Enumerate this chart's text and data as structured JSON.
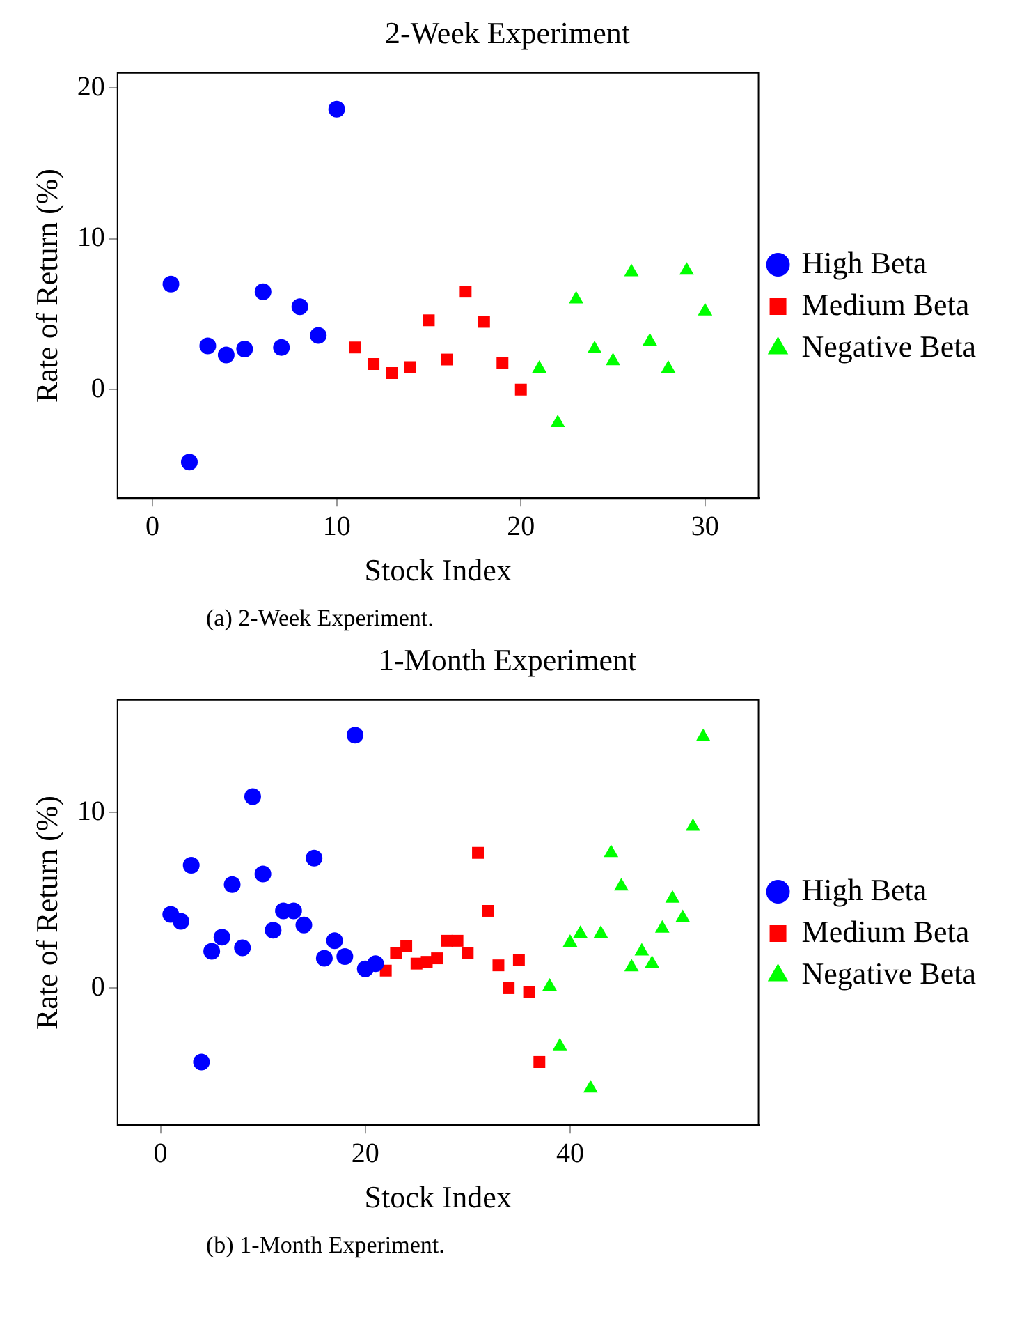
{
  "chart_data": [
    {
      "type": "scatter",
      "title": "2-Week Experiment",
      "xlabel": "Stock Index",
      "ylabel": "Rate of Return (%)",
      "xlim": [
        -1.9,
        32.9
      ],
      "ylim": [
        -7.2,
        21
      ],
      "xticks": [
        0,
        10,
        20,
        30
      ],
      "yticks": [
        0,
        10,
        20
      ],
      "grid": false,
      "legend": "right",
      "annotations": [
        "(a) 2-Week Experiment."
      ],
      "series": [
        {
          "name": "High Beta",
          "color": "#0000ff",
          "marker": "circle",
          "x": [
            1,
            2,
            3,
            4,
            5,
            6,
            7,
            8,
            9,
            10
          ],
          "values": [
            7.0,
            -4.8,
            2.9,
            2.3,
            2.7,
            6.5,
            2.8,
            5.5,
            3.6,
            18.6
          ]
        },
        {
          "name": "Medium Beta",
          "color": "#ff0000",
          "marker": "square",
          "x": [
            11,
            12,
            13,
            14,
            15,
            16,
            17,
            18,
            19,
            20
          ],
          "values": [
            2.8,
            1.7,
            1.1,
            1.5,
            4.6,
            2.0,
            6.5,
            4.5,
            1.8,
            0
          ]
        },
        {
          "name": "Negative Beta",
          "color": "#00ff00",
          "marker": "triangle",
          "x": [
            21,
            22,
            23,
            24,
            25,
            26,
            27,
            28,
            29,
            30
          ],
          "values": [
            1.4,
            -2.2,
            6.0,
            2.7,
            1.9,
            7.8,
            3.2,
            1.4,
            7.9,
            5.2
          ]
        }
      ]
    },
    {
      "type": "scatter",
      "title": "1-Month Experiment",
      "xlabel": "Stock Index",
      "ylabel": "Rate of Return (%)",
      "xlim": [
        -4.2,
        58.4
      ],
      "ylim": [
        -7.8,
        16.4
      ],
      "xticks": [
        0,
        20,
        40
      ],
      "yticks": [
        0,
        10
      ],
      "grid": false,
      "legend": "right",
      "annotations": [
        "(b) 1-Month Experiment."
      ],
      "series": [
        {
          "name": "High Beta",
          "color": "#0000ff",
          "marker": "circle",
          "x": [
            1,
            2,
            3,
            4,
            5,
            6,
            7,
            8,
            9,
            10,
            11,
            12,
            13,
            14,
            15,
            16,
            17,
            18,
            19,
            20,
            21
          ],
          "values": [
            4.2,
            3.8,
            7.0,
            -4.2,
            2.1,
            2.9,
            5.9,
            2.3,
            10.9,
            6.5,
            3.3,
            4.4,
            4.4,
            3.6,
            7.4,
            1.7,
            2.7,
            1.8,
            14.4,
            1.1,
            1.4
          ]
        },
        {
          "name": "Medium Beta",
          "color": "#ff0000",
          "marker": "square",
          "x": [
            22,
            23,
            24,
            25,
            26,
            27,
            28,
            29,
            30,
            31,
            32,
            33,
            34,
            35,
            36,
            37
          ],
          "values": [
            1.0,
            2.0,
            2.4,
            1.4,
            1.5,
            1.7,
            2.7,
            2.7,
            2.0,
            7.7,
            4.4,
            1.3,
            0,
            1.6,
            -0.2,
            -4.2
          ]
        },
        {
          "name": "Negative Beta",
          "color": "#00ff00",
          "marker": "triangle",
          "x": [
            38,
            39,
            40,
            41,
            42,
            43,
            44,
            45,
            46,
            47,
            48,
            49,
            50,
            51,
            52,
            53
          ],
          "values": [
            0.1,
            -3.3,
            2.6,
            3.1,
            -5.7,
            3.1,
            7.7,
            5.8,
            1.2,
            2.1,
            1.4,
            3.4,
            5.1,
            4.0,
            9.2,
            14.3
          ]
        }
      ]
    }
  ]
}
